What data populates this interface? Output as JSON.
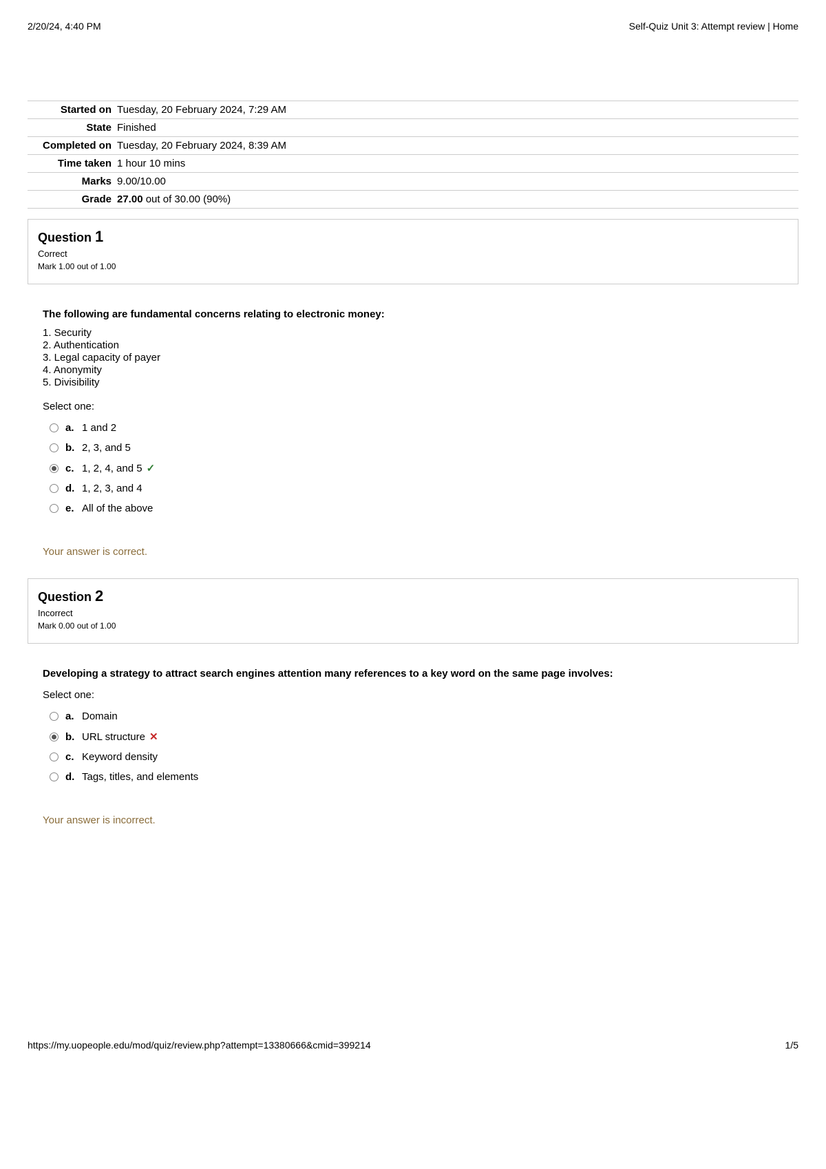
{
  "header": {
    "timestamp": "2/20/24, 4:40 PM",
    "title": "Self-Quiz Unit 3: Attempt review | Home"
  },
  "summary": {
    "rows": [
      {
        "label": "Started on",
        "value": "Tuesday, 20 February 2024, 7:29 AM"
      },
      {
        "label": "State",
        "value": "Finished"
      },
      {
        "label": "Completed on",
        "value": "Tuesday, 20 February 2024, 8:39 AM"
      },
      {
        "label": "Time taken",
        "value": "1 hour 10 mins"
      },
      {
        "label": "Marks",
        "value": "9.00/10.00"
      }
    ],
    "grade_label": "Grade",
    "grade_bold": "27.00",
    "grade_rest": " out of 30.00 (90%)"
  },
  "questions": [
    {
      "number": "1",
      "label": "Question",
      "status": "Correct",
      "mark": "Mark 1.00 out of 1.00",
      "prompt": "The following are fundamental concerns relating to electronic money:",
      "list": [
        "1. Security",
        "2. Authentication",
        "3. Legal capacity of payer",
        "4. Anonymity",
        "5. Divisibility"
      ],
      "select_one": "Select one:",
      "options": [
        {
          "letter": "a.",
          "text": "1 and 2",
          "checked": false,
          "mark": ""
        },
        {
          "letter": "b.",
          "text": "2, 3, and 5",
          "checked": false,
          "mark": ""
        },
        {
          "letter": "c.",
          "text": "1, 2, 4, and 5",
          "checked": true,
          "mark": "correct"
        },
        {
          "letter": "d.",
          "text": "1, 2, 3, and 4",
          "checked": false,
          "mark": ""
        },
        {
          "letter": "e.",
          "text": "All of the above",
          "checked": false,
          "mark": ""
        }
      ],
      "feedback": "Your answer is correct."
    },
    {
      "number": "2",
      "label": "Question",
      "status": "Incorrect",
      "mark": "Mark 0.00 out of 1.00",
      "prompt": "Developing a strategy to attract search engines attention many references to a key word on the same page involves:",
      "list": [],
      "select_one": "Select one:",
      "options": [
        {
          "letter": "a.",
          "text": "Domain",
          "checked": false,
          "mark": ""
        },
        {
          "letter": "b.",
          "text": "URL structure",
          "checked": true,
          "mark": "incorrect"
        },
        {
          "letter": "c.",
          "text": "Keyword density",
          "checked": false,
          "mark": ""
        },
        {
          "letter": "d.",
          "text": "Tags, titles, and elements",
          "checked": false,
          "mark": ""
        }
      ],
      "feedback": "Your answer is incorrect."
    }
  ],
  "footer": {
    "url": "https://my.uopeople.edu/mod/quiz/review.php?attempt=13380666&cmid=399214",
    "page": "1/5"
  }
}
